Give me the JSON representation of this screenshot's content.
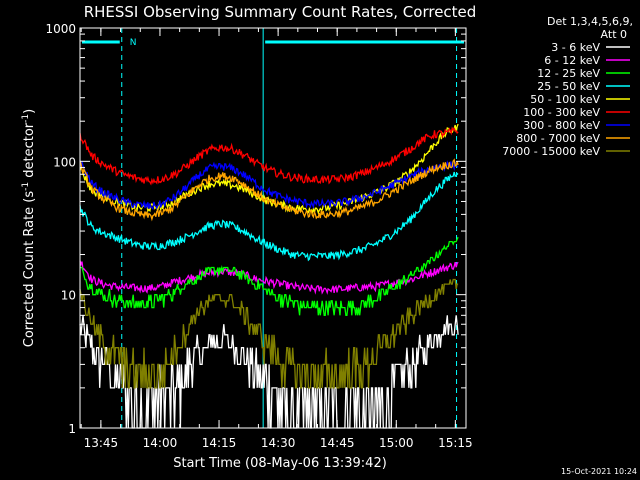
{
  "chart_data": {
    "type": "line",
    "title": "RHESSI Observing Summary Count Rates, Corrected",
    "xlabel": "Start Time (08-May-06 13:39:42)",
    "ylabel_main": "Corrected Count Rate (s",
    "ylabel_sup1": "-1",
    "ylabel_mid": " detector",
    "ylabel_sup2": "-1",
    "ylabel_end": ")",
    "yscale": "log",
    "ylim": [
      1,
      1000
    ],
    "xlim_min": [
      0,
      98
    ],
    "x_ticks": [
      {
        "min": 5.3,
        "label": "13:45"
      },
      {
        "min": 20.3,
        "label": "14:00"
      },
      {
        "min": 35.3,
        "label": "14:15"
      },
      {
        "min": 50.3,
        "label": "14:30"
      },
      {
        "min": 65.3,
        "label": "14:45"
      },
      {
        "min": 80.3,
        "label": "15:00"
      },
      {
        "min": 95.3,
        "label": "15:15"
      }
    ],
    "y_ticks": [
      {
        "value": 1,
        "label": "1"
      },
      {
        "value": 10,
        "label": "10"
      },
      {
        "value": 100,
        "label": "100"
      },
      {
        "value": 1000,
        "label": "1000"
      }
    ],
    "legend_header": [
      "Det 1,3,4,5,6,9,",
      "Att 0"
    ],
    "annotation_N": "N",
    "night_intervals_min": [
      [
        0,
        10.6
      ],
      [
        46.5,
        98
      ]
    ],
    "dashed_markers_min": [
      10.6,
      95.6
    ],
    "solid_markers_min": [
      46.5
    ],
    "series": [
      {
        "name": "3 - 6 keV",
        "color": "#ffffff",
        "x": [
          0,
          3,
          6,
          9,
          12,
          15,
          18,
          21,
          24,
          27,
          30,
          33,
          36,
          39,
          42,
          45,
          48,
          51,
          54,
          57,
          60,
          63,
          66,
          69,
          72,
          75,
          78,
          81,
          84,
          87,
          90,
          93,
          96
        ],
        "y": [
          6,
          4,
          3,
          2.3,
          1.9,
          1.6,
          1.4,
          1.6,
          2,
          2.7,
          3.5,
          4.3,
          4.6,
          4.3,
          3.4,
          2.6,
          2,
          1.6,
          1.3,
          1.2,
          1.3,
          1.2,
          1.3,
          1.6,
          1.2,
          1.4,
          1.6,
          2.4,
          3,
          3.8,
          4.8,
          5.8,
          6
        ]
      },
      {
        "name": "6 - 12 keV",
        "color": "#ff00ff",
        "x": [
          0,
          3,
          6,
          9,
          12,
          15,
          18,
          21,
          24,
          27,
          30,
          33,
          36,
          39,
          42,
          45,
          48,
          51,
          54,
          57,
          60,
          63,
          66,
          69,
          72,
          75,
          78,
          81,
          84,
          87,
          90,
          93,
          96
        ],
        "y": [
          18,
          13,
          12,
          11.5,
          11.3,
          11.2,
          11.2,
          11.6,
          12.5,
          13.2,
          14,
          14.6,
          15,
          14.6,
          14,
          13,
          12.5,
          12,
          11.5,
          11.2,
          11,
          11,
          11,
          11.2,
          11.4,
          11.5,
          12,
          12.5,
          13,
          14,
          15,
          16,
          17
        ]
      },
      {
        "name": "12 - 25 keV",
        "color": "#00ff00",
        "x": [
          0,
          3,
          6,
          9,
          12,
          15,
          18,
          21,
          24,
          27,
          30,
          33,
          36,
          39,
          42,
          45,
          48,
          51,
          54,
          57,
          60,
          63,
          66,
          69,
          72,
          75,
          78,
          81,
          84,
          87,
          90,
          93,
          96
        ],
        "y": [
          16,
          11,
          10,
          9.2,
          8.6,
          8.5,
          8.7,
          9.4,
          10.5,
          12,
          13.5,
          15,
          15.5,
          15,
          13.5,
          12,
          10.5,
          9.5,
          8.7,
          8.2,
          8,
          7.9,
          8,
          8.2,
          8.5,
          9.2,
          10.5,
          12,
          14,
          16,
          19,
          23,
          27
        ]
      },
      {
        "name": "25 - 50 keV",
        "color": "#00ffff",
        "x": [
          0,
          3,
          6,
          9,
          12,
          15,
          18,
          21,
          24,
          27,
          30,
          33,
          36,
          39,
          42,
          45,
          48,
          51,
          54,
          57,
          60,
          63,
          66,
          69,
          72,
          75,
          78,
          81,
          84,
          87,
          90,
          93,
          96
        ],
        "y": [
          45,
          32,
          29,
          27,
          25,
          23.5,
          23,
          23.5,
          25,
          27,
          30,
          33,
          34,
          32.5,
          29.5,
          26,
          23.5,
          21.5,
          20,
          19.5,
          19.5,
          19.5,
          20,
          21,
          22,
          24,
          27,
          31,
          37,
          47,
          60,
          72,
          85
        ]
      },
      {
        "name": "50 - 100 keV",
        "color": "#ffff00",
        "x": [
          0,
          3,
          6,
          9,
          12,
          15,
          18,
          21,
          24,
          27,
          30,
          33,
          36,
          39,
          42,
          45,
          48,
          51,
          54,
          57,
          60,
          63,
          66,
          69,
          72,
          75,
          78,
          81,
          84,
          87,
          90,
          93,
          96
        ],
        "y": [
          90,
          60,
          55,
          50,
          47,
          45,
          45,
          46,
          50,
          56,
          63,
          68,
          68,
          66,
          61,
          55,
          50,
          47,
          45,
          44,
          44,
          45,
          47,
          50,
          54,
          58,
          64,
          72,
          85,
          105,
          135,
          165,
          180
        ]
      },
      {
        "name": "100 - 300 keV",
        "color": "#ff0000",
        "x": [
          0,
          3,
          6,
          9,
          12,
          15,
          18,
          21,
          24,
          27,
          30,
          33,
          36,
          39,
          42,
          45,
          48,
          51,
          54,
          57,
          60,
          63,
          66,
          69,
          72,
          75,
          78,
          81,
          84,
          87,
          90,
          93,
          96
        ],
        "y": [
          160,
          110,
          95,
          85,
          78,
          74,
          72,
          74,
          80,
          92,
          108,
          122,
          128,
          123,
          110,
          96,
          86,
          80,
          76,
          74,
          73,
          73,
          74,
          77,
          82,
          89,
          98,
          110,
          125,
          145,
          160,
          163,
          170
        ]
      },
      {
        "name": "300 - 800 keV",
        "color": "#0000ff",
        "x": [
          0,
          3,
          6,
          9,
          12,
          15,
          18,
          21,
          24,
          27,
          30,
          33,
          36,
          39,
          42,
          45,
          48,
          51,
          54,
          57,
          60,
          63,
          66,
          69,
          72,
          75,
          78,
          81,
          84,
          87,
          90,
          93,
          96
        ],
        "y": [
          100,
          68,
          58,
          53,
          49,
          47,
          46,
          48,
          54,
          64,
          78,
          89,
          92,
          88,
          78,
          67,
          59,
          54,
          51,
          49,
          48,
          48,
          49,
          51,
          54,
          58,
          64,
          70,
          77,
          84,
          90,
          93,
          95
        ]
      },
      {
        "name": "800 - 7000 keV",
        "color": "#ffa500",
        "x": [
          0,
          3,
          6,
          9,
          12,
          15,
          18,
          21,
          24,
          27,
          30,
          33,
          36,
          39,
          42,
          45,
          48,
          51,
          54,
          57,
          60,
          63,
          66,
          69,
          72,
          75,
          78,
          81,
          84,
          87,
          90,
          93,
          96
        ],
        "y": [
          95,
          62,
          52,
          46,
          42,
          40,
          39,
          41,
          46,
          55,
          66,
          75,
          78,
          75,
          66,
          57,
          50,
          46,
          43,
          41,
          40,
          40,
          41,
          43,
          46,
          50,
          56,
          63,
          71,
          80,
          89,
          94,
          97
        ]
      },
      {
        "name": "7000 - 15000 keV",
        "color": "#808000",
        "x": [
          0,
          3,
          6,
          9,
          12,
          15,
          18,
          21,
          24,
          27,
          30,
          33,
          36,
          39,
          42,
          45,
          48,
          51,
          54,
          57,
          60,
          63,
          66,
          69,
          72,
          75,
          78,
          81,
          84,
          87,
          90,
          93,
          96
        ],
        "y": [
          11,
          6,
          4.5,
          3.5,
          2.8,
          2.5,
          2.5,
          2.8,
          3.8,
          5.5,
          7.5,
          9,
          9.5,
          8.8,
          7,
          5.3,
          4,
          3.2,
          2.7,
          2.5,
          2.5,
          2.5,
          2.5,
          2.7,
          3,
          3.5,
          4.5,
          5.5,
          7,
          8.5,
          10,
          11.5,
          12
        ]
      }
    ]
  },
  "timestamp": "15-Oct-2021 10:24"
}
